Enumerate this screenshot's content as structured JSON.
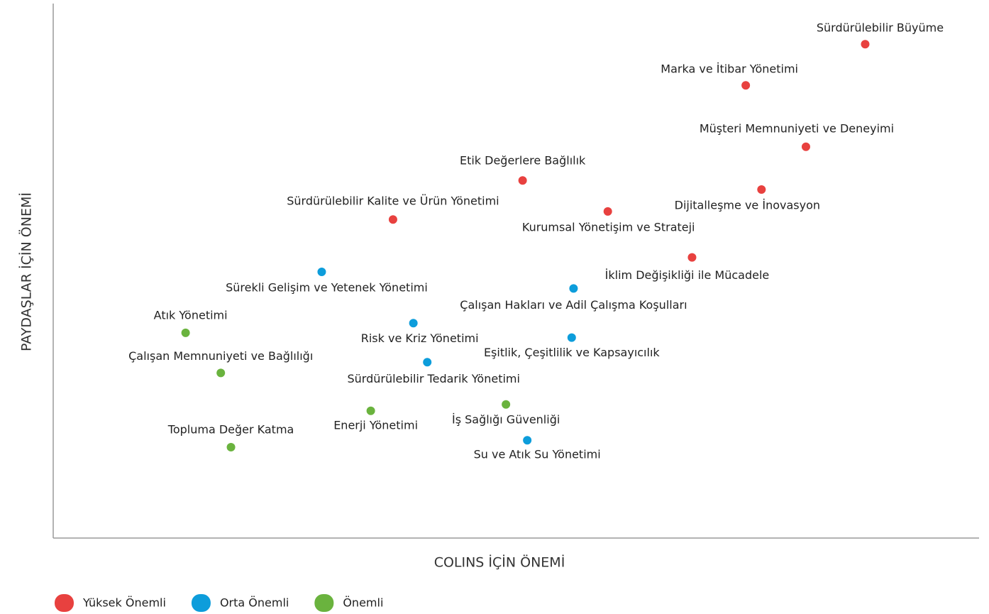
{
  "chart_data": {
    "type": "scatter",
    "x_label": "COLINS İÇİN ÖNEMİ",
    "y_label": "PAYDAŞLAR İÇİN ÖNEMİ",
    "xlim": [
      0,
      100
    ],
    "ylim": [
      0,
      100
    ],
    "series": [
      {
        "name": "Yüksek Önemli",
        "color": "#e8413f",
        "labels": [
          "Sürdürülebilir Büyüme",
          "Marka ve İtibar Yönetimi",
          "Müşteri Memnuniyeti ve Deneyimi",
          "Etik Değerlere Bağlılık",
          "Dijitalleşme ve İnovasyon",
          "Kurumsal Yönetişim ve Strateji",
          "Sürdürülebilir Kalite ve Ürün Yönetimi",
          "İklim Değişikliği ile Mücadele"
        ],
        "x": [
          87.7,
          74.8,
          81.3,
          50.7,
          76.5,
          59.9,
          36.7,
          69.0
        ],
        "values": [
          92.4,
          84.7,
          73.2,
          66.9,
          65.2,
          61.1,
          59.6,
          52.5
        ]
      },
      {
        "name": "Orta Önemli",
        "color": "#0d9ddb",
        "labels": [
          "Sürekli Gelişim ve Yetenek Yönetimi",
          "Çalışan Hakları ve Adil Çalışma Koşulları",
          "Risk ve Kriz Yönetimi",
          "Eşitlik, Çeşitlilik ve Kapsayıcılık",
          "Sürdürülebilir Tedarik Yönetimi",
          "Su ve Atık Su Yönetimi"
        ],
        "x": [
          29.0,
          56.2,
          38.9,
          56.0,
          40.4,
          51.2
        ],
        "values": [
          49.8,
          46.7,
          40.2,
          37.5,
          32.9,
          18.3
        ]
      },
      {
        "name": "Önemli",
        "color": "#6ab33e",
        "labels": [
          "Atık Yönetimi",
          "Çalışan Memnuniyeti ve Bağlılığı",
          "İş Sağlığı Güvenliği",
          "Enerji Yönetimi",
          "Topluma Değer Katma"
        ],
        "x": [
          14.3,
          18.1,
          48.9,
          34.3,
          19.2
        ],
        "values": [
          38.4,
          30.9,
          25.0,
          23.8,
          17.0
        ]
      }
    ]
  }
}
